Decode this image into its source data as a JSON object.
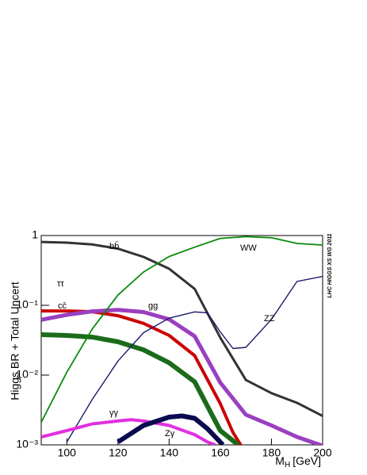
{
  "chart_data": {
    "type": "line",
    "y_label": "Higgs BR + Total Uncert",
    "x_label": "M",
    "x_label_sub": "H",
    "x_label_unit": "[GeV]",
    "side_note": "LHC HIGGS XS WG 2011",
    "xlim": [
      90,
      200
    ],
    "xticks": [
      100,
      120,
      140,
      160,
      180,
      200
    ],
    "ylim": [
      0.001,
      1
    ],
    "log_y": true,
    "yticks": [
      1,
      {
        "value": 0.1,
        "label": "10⁻¹"
      },
      {
        "value": 0.01,
        "label": "10⁻²"
      },
      {
        "value": 0.001,
        "label": "10⁻³"
      }
    ],
    "series": [
      {
        "name": "bb̄",
        "color": "#333333",
        "x": [
          90,
          100,
          110,
          120,
          130,
          140,
          150,
          160,
          170,
          180,
          190,
          200
        ],
        "values": [
          0.81,
          0.79,
          0.745,
          0.648,
          0.494,
          0.334,
          0.172,
          0.0344,
          0.0085,
          0.0055,
          0.004,
          0.0026
        ]
      },
      {
        "name": "ττ",
        "color": "#cc0000",
        "x": [
          90,
          100,
          110,
          120,
          130,
          140,
          150,
          160,
          165,
          168
        ],
        "values": [
          0.083,
          0.083,
          0.081,
          0.071,
          0.055,
          0.037,
          0.019,
          0.0039,
          0.0015,
          0.001
        ]
      },
      {
        "name": "gg",
        "color": "#9a3fc0",
        "x": [
          90,
          100,
          110,
          120,
          130,
          140,
          150,
          160,
          170,
          180,
          190,
          200
        ],
        "values": [
          0.062,
          0.073,
          0.082,
          0.086,
          0.08,
          0.063,
          0.036,
          0.0078,
          0.0027,
          0.0019,
          0.0013,
          0.00097
        ]
      },
      {
        "name": "cc̄",
        "color": "#1a6b1a",
        "x": [
          90,
          100,
          110,
          120,
          130,
          140,
          150,
          160,
          167
        ],
        "values": [
          0.038,
          0.037,
          0.035,
          0.03,
          0.023,
          0.015,
          0.008,
          0.0016,
          0.001
        ]
      },
      {
        "name": "WW",
        "color": "#0a8a0a",
        "x": [
          90,
          100,
          110,
          120,
          130,
          140,
          150,
          160,
          170,
          180,
          190,
          200
        ],
        "values": [
          0.0021,
          0.011,
          0.046,
          0.14,
          0.3,
          0.5,
          0.68,
          0.91,
          0.965,
          0.93,
          0.77,
          0.73
        ]
      },
      {
        "name": "ZZ",
        "color": "#1a1a6b",
        "x": [
          100,
          110,
          120,
          130,
          140,
          150,
          155,
          160,
          165,
          170,
          180,
          190,
          200
        ],
        "values": [
          0.0011,
          0.0045,
          0.0159,
          0.0405,
          0.0654,
          0.0805,
          0.078,
          0.0415,
          0.024,
          0.025,
          0.063,
          0.22,
          0.26
        ]
      },
      {
        "name": "γγ",
        "color": "#e030e0",
        "x": [
          90,
          100,
          110,
          120,
          125,
          130,
          140,
          150,
          155,
          158
        ],
        "values": [
          0.0013,
          0.0016,
          0.002,
          0.0022,
          0.0023,
          0.0022,
          0.0019,
          0.0014,
          0.0011,
          0.001
        ]
      },
      {
        "name": "Zγ",
        "color": "#0a0a50",
        "x": [
          120,
          130,
          140,
          145,
          150,
          155,
          161
        ],
        "values": [
          0.0011,
          0.0019,
          0.0025,
          0.0026,
          0.0024,
          0.0017,
          0.001
        ]
      }
    ]
  }
}
